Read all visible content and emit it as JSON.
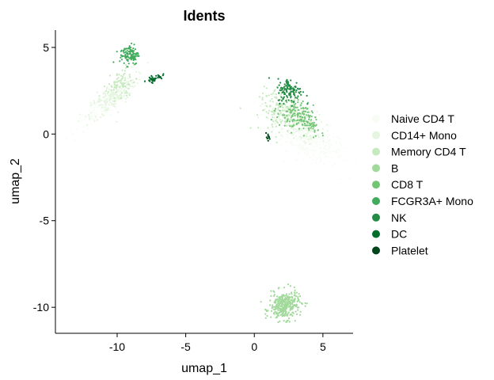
{
  "chart_data": {
    "type": "scatter",
    "title": "Idents",
    "xlabel": "umap_1",
    "ylabel": "umap_2",
    "xlim": [
      -14.5,
      7.2
    ],
    "ylim": [
      -11.5,
      6.0
    ],
    "xticks": [
      -10,
      -5,
      0,
      5
    ],
    "yticks": [
      -10,
      -5,
      0,
      5
    ],
    "xtick_labels": [
      "-10",
      "-5",
      "0",
      "5"
    ],
    "ytick_labels": [
      "-10",
      "-5",
      "0",
      "5"
    ],
    "grid": false,
    "legend_position": "right",
    "series": [
      {
        "name": "Naive CD4 T",
        "color": "#f7fcf5",
        "clusters": [
          {
            "cx": 4.0,
            "cy": -0.3,
            "sx": 1.3,
            "sy": 0.55,
            "n": 380,
            "rot": -20
          },
          {
            "cx": -10.8,
            "cy": 1.6,
            "sx": 1.3,
            "sy": 0.25,
            "n": 140,
            "rot": 28
          }
        ]
      },
      {
        "name": "CD14+ Mono",
        "color": "#e5f5e0",
        "clusters": [
          {
            "cx": -10.3,
            "cy": 2.2,
            "sx": 1.0,
            "sy": 0.35,
            "n": 200,
            "rot": 32
          },
          {
            "cx": 2.8,
            "cy": 0.8,
            "sx": 1.1,
            "sy": 0.5,
            "n": 200,
            "rot": -18
          }
        ]
      },
      {
        "name": "Memory CD4 T",
        "color": "#c7e9c0",
        "clusters": [
          {
            "cx": -9.8,
            "cy": 2.9,
            "sx": 0.55,
            "sy": 0.35,
            "n": 80,
            "rot": 30
          },
          {
            "cx": 2.0,
            "cy": 1.4,
            "sx": 0.8,
            "sy": 0.6,
            "n": 140,
            "rot": 0
          }
        ]
      },
      {
        "name": "B",
        "color": "#a1d99b",
        "clusters": [
          {
            "cx": 2.2,
            "cy": -9.9,
            "sx": 0.55,
            "sy": 0.4,
            "n": 320,
            "rot": 10
          }
        ]
      },
      {
        "name": "CD8 T",
        "color": "#74c476",
        "clusters": [
          {
            "cx": 2.9,
            "cy": 1.1,
            "sx": 0.6,
            "sy": 0.45,
            "n": 110,
            "rot": -15
          },
          {
            "cx": 3.9,
            "cy": 0.7,
            "sx": 0.6,
            "sy": 0.3,
            "n": 60,
            "rot": -30
          }
        ]
      },
      {
        "name": "FCGR3A+ Mono",
        "color": "#41ab5d",
        "clusters": [
          {
            "cx": -9.1,
            "cy": 4.6,
            "sx": 0.35,
            "sy": 0.3,
            "n": 110,
            "rot": 0
          }
        ]
      },
      {
        "name": "NK",
        "color": "#238b45",
        "clusters": [
          {
            "cx": 2.6,
            "cy": 2.5,
            "sx": 0.45,
            "sy": 0.35,
            "n": 120,
            "rot": 0
          }
        ]
      },
      {
        "name": "DC",
        "color": "#006d2c",
        "clusters": [
          {
            "cx": -7.3,
            "cy": 3.2,
            "sx": 0.3,
            "sy": 0.08,
            "n": 40,
            "rot": 15
          }
        ]
      },
      {
        "name": "Platelet",
        "color": "#00441b",
        "clusters": [
          {
            "cx": 1.0,
            "cy": -0.2,
            "sx": 0.1,
            "sy": 0.12,
            "n": 10,
            "rot": 0
          }
        ]
      }
    ]
  }
}
